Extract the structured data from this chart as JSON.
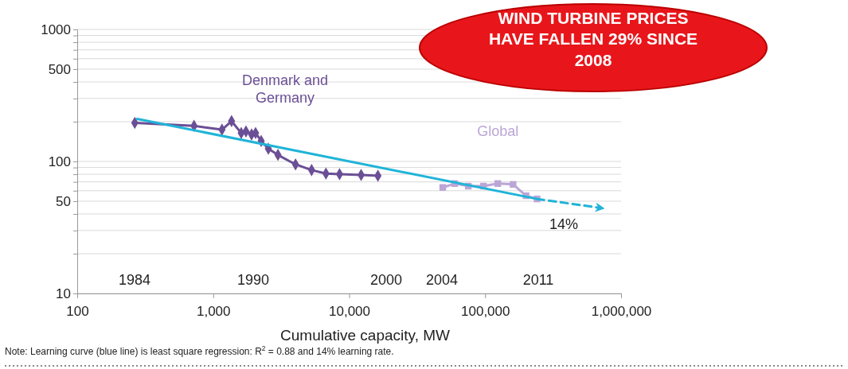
{
  "chart_data": {
    "type": "line",
    "xlabel": "Cumulative capacity, MW",
    "log": "xy",
    "grid": "y",
    "xlim": [
      100,
      1000000
    ],
    "xticks": [
      100,
      {
        "value": 1000,
        "label": "1,000"
      },
      {
        "value": 10000,
        "label": "10,000"
      },
      {
        "value": 100000,
        "label": "100,000"
      },
      {
        "value": 1000000,
        "label": "1,000,000"
      }
    ],
    "ylim": [
      10,
      1000
    ],
    "yticks": [
      10,
      {
        "value": 20,
        "label": null
      },
      {
        "value": 30,
        "label": null
      },
      {
        "value": 40,
        "label": null
      },
      50,
      {
        "value": 60,
        "label": null
      },
      {
        "value": 70,
        "label": null
      },
      {
        "value": 80,
        "label": null
      },
      {
        "value": 90,
        "label": null
      },
      100,
      {
        "value": 200,
        "label": null
      },
      {
        "value": 300,
        "label": null
      },
      {
        "value": 400,
        "label": null
      },
      500,
      {
        "value": 600,
        "label": null
      },
      {
        "value": 700,
        "label": null
      },
      {
        "value": 800,
        "label": null
      },
      {
        "value": 900,
        "label": null
      },
      1000
    ],
    "series": [
      {
        "name": "Denmark and Germany",
        "color": "#6b4f96",
        "marker": "diamond",
        "x": [
          265,
          723,
          1160,
          1365,
          1607,
          1742,
          1916,
          2050,
          2254,
          2545,
          2994,
          4033,
          5295,
          6750,
          8500,
          12250,
          16280
        ],
        "values": [
          196,
          186,
          174,
          202,
          164,
          169,
          160,
          164,
          143,
          125,
          112,
          95,
          86,
          81,
          80,
          79,
          78
        ]
      },
      {
        "name": "Global",
        "color": "#bba6d6",
        "marker": "square",
        "x": [
          48800,
          59700,
          75200,
          97300,
          124000,
          160600,
          200000,
          241000
        ],
        "values": [
          63.5,
          68,
          65,
          65,
          68,
          67,
          55,
          52
        ]
      },
      {
        "color": "#1fb4d8",
        "marker": "none",
        "x": [
          276,
          241000
        ],
        "values": [
          210,
          52
        ]
      },
      {
        "color": "#1fb4d8",
        "marker": "none",
        "line_style": "dashed",
        "x": [
          241000,
          712000
        ],
        "values": [
          52,
          44.4
        ]
      }
    ],
    "annotations": [
      "WIND TURBINE PRICES HAVE FALLEN 29% SINCE 2008",
      "1984",
      "1990",
      "2000",
      "2004",
      "2011",
      "14%",
      "Note: Learning curve (blue line) is least square regression: R$^{2}$ = 0.88 and 14% learning rate."
    ]
  }
}
